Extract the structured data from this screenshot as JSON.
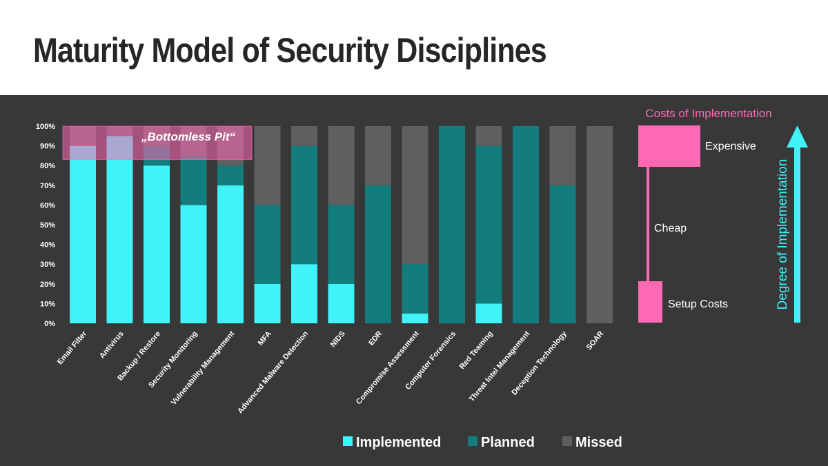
{
  "title": "Maturity Model of Security Disciplines",
  "colors": {
    "implemented": "#3ff3f8",
    "planned": "#137d7d",
    "missed": "#5f5f5f",
    "pink": "#ff69b4",
    "background": "#383838"
  },
  "chart_data": {
    "type": "bar",
    "stacked": true,
    "categories": [
      "Email Filter",
      "Antivirus",
      "Backup / Restore",
      "Security Monitoring",
      "Vulnerability Management",
      "MFA",
      "Advanced Malware Detection",
      "NIDS",
      "EDR",
      "Compromise Assessment",
      "Computer Forensics",
      "Red Teaming",
      "Threat Intel Management",
      "Deception Technology",
      "SOAR"
    ],
    "series": [
      {
        "name": "Implemented",
        "values": [
          90,
          95,
          80,
          60,
          70,
          20,
          30,
          20,
          0,
          5,
          0,
          10,
          0,
          0,
          0
        ]
      },
      {
        "name": "Planned",
        "values": [
          0,
          0,
          10,
          25,
          10,
          40,
          60,
          40,
          70,
          25,
          100,
          80,
          100,
          70,
          0
        ]
      },
      {
        "name": "Missed",
        "values": [
          10,
          5,
          10,
          15,
          20,
          40,
          10,
          40,
          30,
          70,
          0,
          10,
          0,
          30,
          100
        ]
      }
    ],
    "ylim": [
      0,
      100
    ],
    "yticks": [
      "0%",
      "10%",
      "20%",
      "30%",
      "40%",
      "50%",
      "60%",
      "70%",
      "80%",
      "90%",
      "100%"
    ],
    "annotation": {
      "text": "„Bottomless Pit“",
      "from": 83,
      "to": 100
    },
    "legend": "bottom",
    "grid": false
  },
  "side": {
    "costs_title": "Costs of Implementation",
    "expensive": "Expensive",
    "cheap": "Cheap",
    "setup": "Setup Costs",
    "degree": "Degree of Implementation"
  }
}
